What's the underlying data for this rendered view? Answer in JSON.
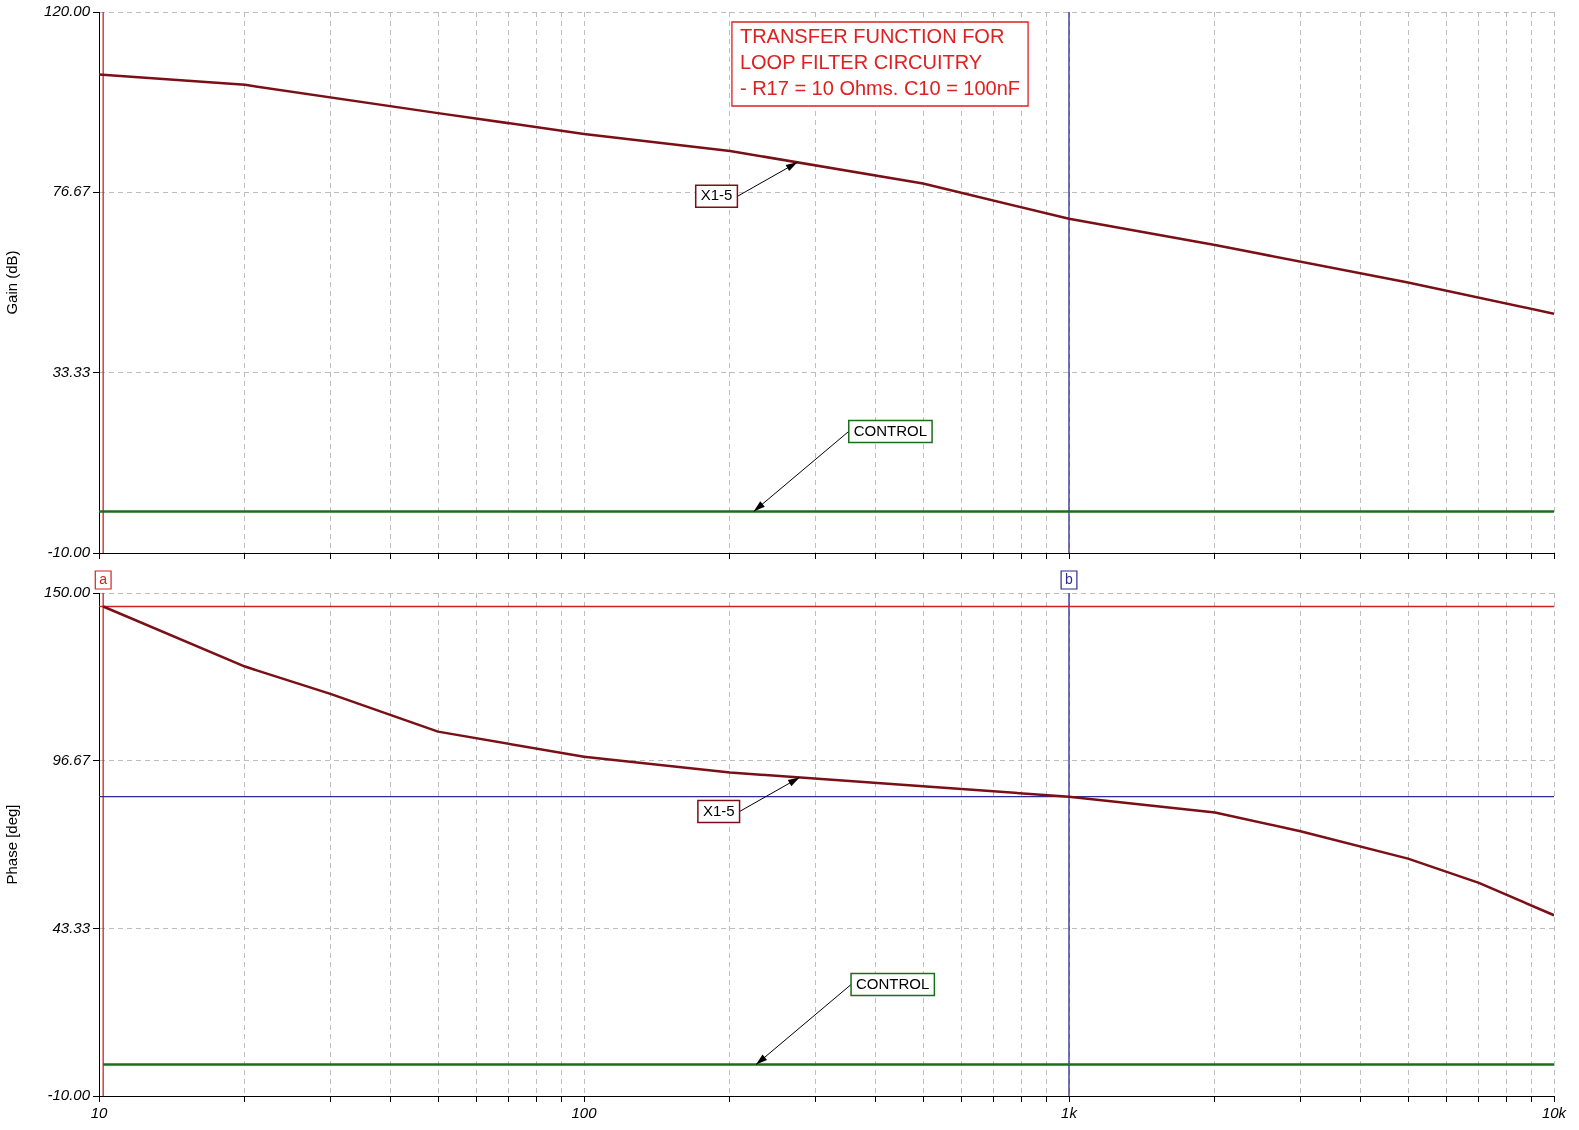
{
  "chart_data": [
    {
      "type": "line",
      "ylabel": "Gain (dB)",
      "log": "x",
      "grid": true,
      "tick_labels": "y",
      "marker": "none",
      "line_style": "solid",
      "xlim": [
        10,
        10000
      ],
      "xticks": [
        {
          "value": 10,
          "label": null
        },
        {
          "value": 20,
          "label": null
        },
        {
          "value": 30,
          "label": null
        },
        {
          "value": 40,
          "label": null
        },
        {
          "value": 50,
          "label": null
        },
        {
          "value": 60,
          "label": null
        },
        {
          "value": 70,
          "label": null
        },
        {
          "value": 80,
          "label": null
        },
        {
          "value": 90,
          "label": null
        },
        {
          "value": 100,
          "label": null
        },
        {
          "value": 200,
          "label": null
        },
        {
          "value": 300,
          "label": null
        },
        {
          "value": 400,
          "label": null
        },
        {
          "value": 500,
          "label": null
        },
        {
          "value": 600,
          "label": null
        },
        {
          "value": 700,
          "label": null
        },
        {
          "value": 800,
          "label": null
        },
        {
          "value": 900,
          "label": null
        },
        {
          "value": 1000,
          "label": null
        },
        {
          "value": 2000,
          "label": null
        },
        {
          "value": 3000,
          "label": null
        },
        {
          "value": 4000,
          "label": null
        },
        {
          "value": 5000,
          "label": null
        },
        {
          "value": 6000,
          "label": null
        },
        {
          "value": 7000,
          "label": null
        },
        {
          "value": 8000,
          "label": null
        },
        {
          "value": 9000,
          "label": null
        },
        {
          "value": 10000,
          "label": null
        }
      ],
      "ylim": [
        -10,
        120
      ],
      "yticks": [
        {
          "value": -10,
          "label": "-10.00"
        },
        {
          "value": 33.33,
          "label": "33.33"
        },
        {
          "value": 76.67,
          "label": "76.67"
        },
        {
          "value": 120,
          "label": "120.00"
        }
      ],
      "x": [
        10,
        20,
        50,
        100,
        200,
        500,
        1000,
        2000,
        5000,
        10000
      ],
      "series": [
        {
          "name": "X1-5",
          "color": "#7a1016",
          "values": [
            105,
            102.5,
            95.7,
            90.7,
            86.6,
            78.8,
            70.3,
            64,
            55,
            47.5
          ]
        },
        {
          "name": "CONTROL",
          "color": "#1b6e1b",
          "values": [
            0,
            0,
            0,
            0,
            0,
            0,
            0,
            0,
            0,
            0
          ]
        }
      ],
      "ref_lines": [
        {
          "axis": "x",
          "value": 10.2,
          "color": "#d42020"
        },
        {
          "axis": "x",
          "value": 1000,
          "color": "#2b2b9a"
        }
      ],
      "annotations": [
        "TRANSFER FUNCTION FOR\nLOOP FILTER CIRCUITRY\n- R17 = 10 Ohms. C10 = 100nF"
      ]
    },
    {
      "type": "line",
      "ylabel": "Phase [deg]",
      "log": "x",
      "grid": true,
      "marker": "none",
      "line_style": "solid",
      "xlim": [
        10,
        10000
      ],
      "xticks": [
        {
          "value": 10,
          "label": "10"
        },
        {
          "value": 20,
          "label": null
        },
        {
          "value": 30,
          "label": null
        },
        {
          "value": 40,
          "label": null
        },
        {
          "value": 50,
          "label": null
        },
        {
          "value": 60,
          "label": null
        },
        {
          "value": 70,
          "label": null
        },
        {
          "value": 80,
          "label": null
        },
        {
          "value": 90,
          "label": null
        },
        {
          "value": 100,
          "label": "100"
        },
        {
          "value": 200,
          "label": null
        },
        {
          "value": 300,
          "label": null
        },
        {
          "value": 400,
          "label": null
        },
        {
          "value": 500,
          "label": null
        },
        {
          "value": 600,
          "label": null
        },
        {
          "value": 700,
          "label": null
        },
        {
          "value": 800,
          "label": null
        },
        {
          "value": 900,
          "label": null
        },
        {
          "value": 1000,
          "label": "1k"
        },
        {
          "value": 2000,
          "label": null
        },
        {
          "value": 3000,
          "label": null
        },
        {
          "value": 4000,
          "label": null
        },
        {
          "value": 5000,
          "label": null
        },
        {
          "value": 6000,
          "label": null
        },
        {
          "value": 7000,
          "label": null
        },
        {
          "value": 8000,
          "label": null
        },
        {
          "value": 9000,
          "label": null
        },
        {
          "value": 10000,
          "label": "10k"
        }
      ],
      "ylim": [
        -10,
        150
      ],
      "yticks": [
        {
          "value": -10,
          "label": "-10.00"
        },
        {
          "value": 43.33,
          "label": "43.33"
        },
        {
          "value": 96.67,
          "label": "96.67"
        },
        {
          "value": 150,
          "label": "150.00"
        }
      ],
      "x": [
        10.2,
        20,
        30,
        50,
        100,
        200,
        500,
        1000,
        2000,
        3000,
        5000,
        7000,
        10000
      ],
      "series": [
        {
          "name": "X1-5",
          "color": "#7a1016",
          "values": [
            145.7,
            126.6,
            117.9,
            105.9,
            97.9,
            92.9,
            88.5,
            85.2,
            80.2,
            74.2,
            65.5,
            57.8,
            47.5
          ]
        },
        {
          "name": "CONTROL",
          "color": "#1b6e1b",
          "values": [
            0,
            0,
            0,
            0,
            0,
            0,
            0,
            0,
            0,
            0,
            0,
            0,
            0
          ]
        }
      ],
      "ref_lines": [
        {
          "axis": "x",
          "value": 10.2,
          "label": "a",
          "color": "#d42020"
        },
        {
          "axis": "x",
          "value": 1000,
          "label": "b",
          "color": "#2b2b9a"
        },
        {
          "axis": "y",
          "value": 145.7,
          "color": "#d42020"
        },
        {
          "axis": "y",
          "value": 85.2,
          "color": "#2b2b9a"
        }
      ]
    }
  ]
}
